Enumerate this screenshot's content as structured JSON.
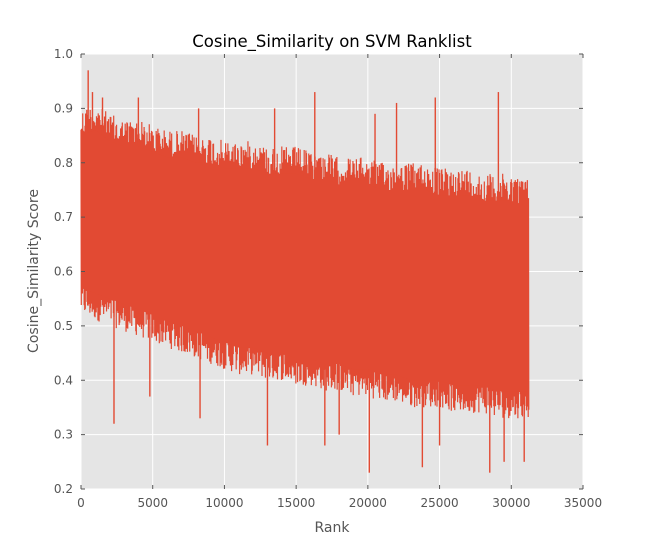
{
  "chart_data": {
    "type": "line",
    "title": "Cosine_Similarity on SVM Ranklist",
    "xlabel": "Rank",
    "ylabel": "Cosine_Similarity Score",
    "xlim": [
      0,
      35000
    ],
    "ylim": [
      0.2,
      1.0
    ],
    "x_ticks": [
      0,
      5000,
      10000,
      15000,
      20000,
      25000,
      30000,
      35000
    ],
    "y_ticks": [
      "0.2",
      "0.3",
      "0.4",
      "0.5",
      "0.6",
      "0.7",
      "0.8",
      "0.9",
      "1.0"
    ],
    "grid": true,
    "legend": "none",
    "series": [
      {
        "color": "#e24a33",
        "x_range": [
          0,
          31200
        ],
        "upper_envelope": [
          [
            0,
            0.9
          ],
          [
            1000,
            0.91
          ],
          [
            2000,
            0.89
          ],
          [
            3000,
            0.88
          ],
          [
            4000,
            0.88
          ],
          [
            5000,
            0.87
          ],
          [
            6000,
            0.86
          ],
          [
            7000,
            0.86
          ],
          [
            8000,
            0.85
          ],
          [
            9000,
            0.85
          ],
          [
            10000,
            0.84
          ],
          [
            11000,
            0.84
          ],
          [
            12000,
            0.84
          ],
          [
            13000,
            0.83
          ],
          [
            14000,
            0.83
          ],
          [
            15000,
            0.83
          ],
          [
            16000,
            0.82
          ],
          [
            17000,
            0.82
          ],
          [
            18000,
            0.81
          ],
          [
            19000,
            0.81
          ],
          [
            20000,
            0.81
          ],
          [
            21000,
            0.8
          ],
          [
            22000,
            0.8
          ],
          [
            23000,
            0.8
          ],
          [
            24000,
            0.8
          ],
          [
            25000,
            0.79
          ],
          [
            26000,
            0.79
          ],
          [
            27000,
            0.79
          ],
          [
            28000,
            0.78
          ],
          [
            29000,
            0.78
          ],
          [
            30000,
            0.78
          ],
          [
            31200,
            0.77
          ]
        ],
        "lower_envelope": [
          [
            0,
            0.52
          ],
          [
            1000,
            0.51
          ],
          [
            2000,
            0.5
          ],
          [
            3000,
            0.49
          ],
          [
            4000,
            0.48
          ],
          [
            5000,
            0.47
          ],
          [
            6000,
            0.46
          ],
          [
            7000,
            0.45
          ],
          [
            8000,
            0.44
          ],
          [
            9000,
            0.43
          ],
          [
            10000,
            0.42
          ],
          [
            11000,
            0.41
          ],
          [
            12000,
            0.41
          ],
          [
            13000,
            0.4
          ],
          [
            14000,
            0.4
          ],
          [
            15000,
            0.39
          ],
          [
            16000,
            0.39
          ],
          [
            17000,
            0.38
          ],
          [
            18000,
            0.38
          ],
          [
            19000,
            0.37
          ],
          [
            20000,
            0.37
          ],
          [
            21000,
            0.36
          ],
          [
            22000,
            0.36
          ],
          [
            23000,
            0.35
          ],
          [
            24000,
            0.35
          ],
          [
            25000,
            0.35
          ],
          [
            26000,
            0.34
          ],
          [
            27000,
            0.34
          ],
          [
            28000,
            0.34
          ],
          [
            29000,
            0.33
          ],
          [
            30000,
            0.33
          ],
          [
            31200,
            0.33
          ]
        ],
        "spikes": [
          [
            500,
            0.97
          ],
          [
            800,
            0.93
          ],
          [
            1500,
            0.92
          ],
          [
            2300,
            0.32
          ],
          [
            4000,
            0.92
          ],
          [
            4800,
            0.37
          ],
          [
            8200,
            0.9
          ],
          [
            8300,
            0.33
          ],
          [
            13000,
            0.28
          ],
          [
            13500,
            0.9
          ],
          [
            16300,
            0.93
          ],
          [
            17000,
            0.28
          ],
          [
            18000,
            0.3
          ],
          [
            20100,
            0.23
          ],
          [
            20500,
            0.89
          ],
          [
            22000,
            0.91
          ],
          [
            23800,
            0.24
          ],
          [
            24700,
            0.92
          ],
          [
            25000,
            0.28
          ],
          [
            28500,
            0.23
          ],
          [
            29100,
            0.93
          ],
          [
            29500,
            0.25
          ],
          [
            30900,
            0.25
          ]
        ]
      }
    ]
  }
}
